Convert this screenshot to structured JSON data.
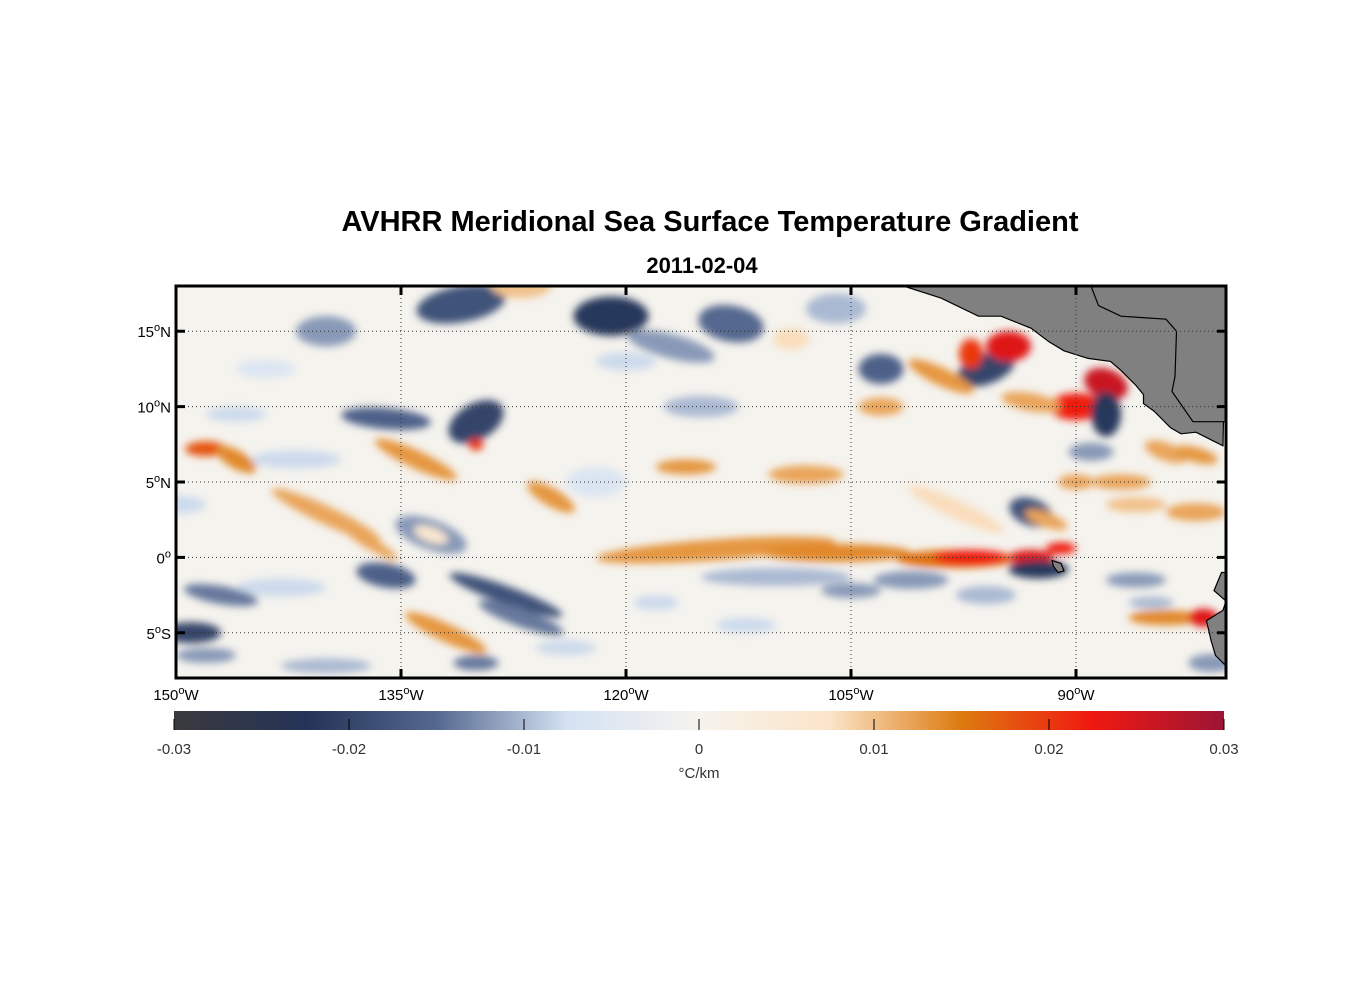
{
  "title": "AVHRR Meridional Sea Surface Temperature Gradient",
  "date": "2011-02-04",
  "map": {
    "lon_range": [
      -150,
      -80
    ],
    "lat_range": [
      -8,
      18
    ],
    "lon_ticks": [
      {
        "value": -150,
        "num": "150",
        "sup": "o",
        "hem": "W"
      },
      {
        "value": -135,
        "num": "135",
        "sup": "o",
        "hem": "W"
      },
      {
        "value": -120,
        "num": "120",
        "sup": "o",
        "hem": "W"
      },
      {
        "value": -105,
        "num": "105",
        "sup": "o",
        "hem": "W"
      },
      {
        "value": -90,
        "num": "90",
        "sup": "o",
        "hem": "W"
      }
    ],
    "lat_ticks": [
      {
        "value": 15,
        "num": "15",
        "sup": "o",
        "hem": "N"
      },
      {
        "value": 10,
        "num": "10",
        "sup": "o",
        "hem": "N"
      },
      {
        "value": 5,
        "num": "5",
        "sup": "o",
        "hem": "N"
      },
      {
        "value": 0,
        "num": "0",
        "sup": "o",
        "hem": ""
      },
      {
        "value": -5,
        "num": "5",
        "sup": "o",
        "hem": "S"
      }
    ],
    "grid": "dotted",
    "land_color": "#808080"
  },
  "colorbar": {
    "min": -0.03,
    "max": 0.03,
    "tick_labels": [
      "-0.03",
      "-0.02",
      "-0.01",
      "0",
      "0.01",
      "0.02",
      "0.03"
    ],
    "tick_values": [
      -0.03,
      -0.02,
      -0.01,
      0,
      0.01,
      0.02,
      0.03
    ],
    "unit_label": "°C/km",
    "colors": [
      "#3a3a3d",
      "#243357",
      "#55688f",
      "#d4e2f3",
      "#f6f3ee",
      "#fbe4c8",
      "#dd7a10",
      "#f01810",
      "#9c1535"
    ]
  }
}
